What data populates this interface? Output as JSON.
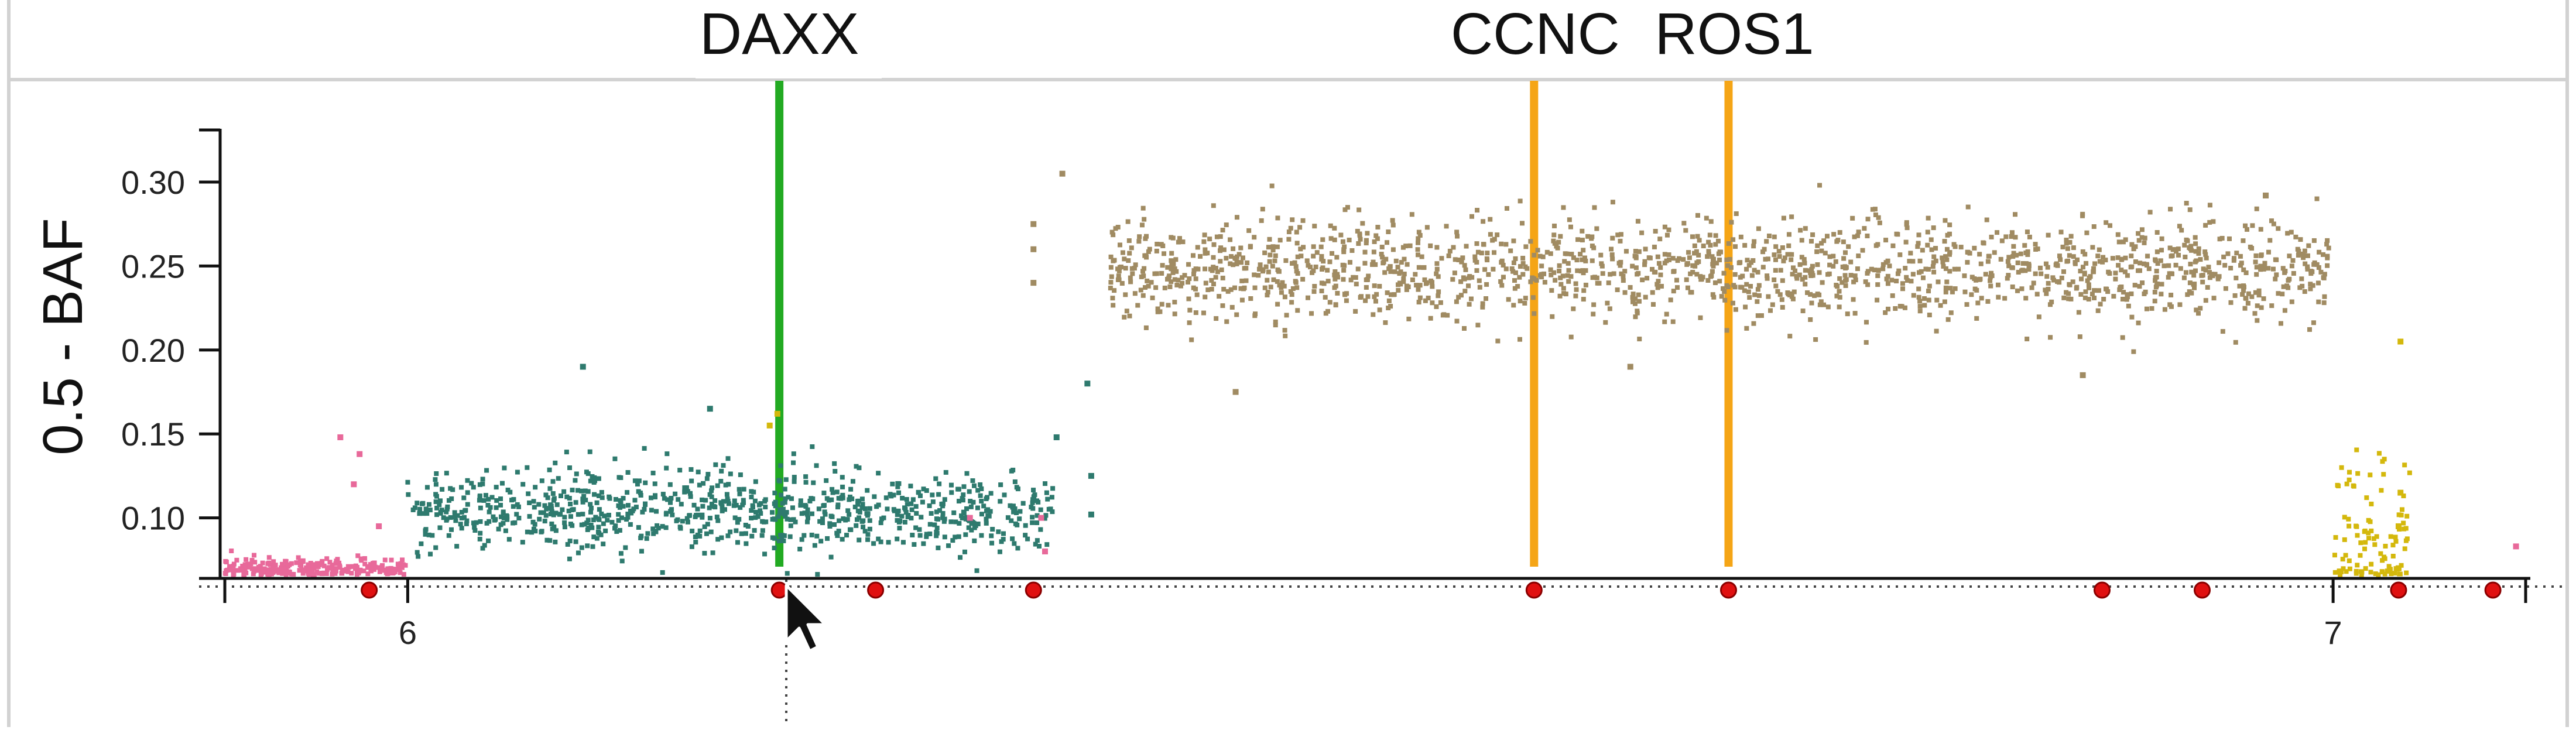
{
  "chart_data": {
    "type": "scatter",
    "ylabel": "0.5 - BAF",
    "xlabel": "",
    "ylim": [
      0.065,
      0.33
    ],
    "xlim": [
      5.905,
      7.1
    ],
    "y_ticks": [
      0.1,
      0.15,
      0.2,
      0.25,
      0.3
    ],
    "y_tick_labels": [
      "0.10",
      "0.15",
      "0.20",
      "0.25",
      "0.30"
    ],
    "x_ticks": [
      6,
      7
    ],
    "x_tick_labels": [
      "6",
      "7"
    ],
    "grid": false,
    "genes": [
      {
        "name": "DAXX",
        "position": 6.193,
        "color": "#22aa22"
      },
      {
        "name": "CCNC",
        "position": 6.585,
        "color": "#f5a516"
      },
      {
        "name": "ROS1",
        "position": 6.686,
        "color": "#f5a516"
      }
    ],
    "segments": [
      {
        "x_start": 5.905,
        "x_end": 6.0,
        "mean": 0.069,
        "sd": 0.004,
        "color": "#e8699a"
      },
      {
        "x_start": 6.0,
        "x_end": 6.335,
        "mean": 0.104,
        "sd": 0.012,
        "color": "#2e7a6e"
      },
      {
        "x_start": 6.365,
        "x_end": 6.998,
        "mean": 0.248,
        "sd": 0.015,
        "color": "#a08b62"
      },
      {
        "x_start": 7.0,
        "x_end": 7.04,
        "mean": 0.085,
        "sd": 0.025,
        "color": "#d4b80c"
      }
    ],
    "isolated_points": [
      {
        "x": 6.091,
        "y": 0.19,
        "color": "#2e7a6e"
      },
      {
        "x": 6.157,
        "y": 0.165,
        "color": "#2e7a6e"
      },
      {
        "x": 6.192,
        "y": 0.162,
        "color": "#d4b80c"
      },
      {
        "x": 6.188,
        "y": 0.155,
        "color": "#d4b80c"
      },
      {
        "x": 6.329,
        "y": 0.1,
        "color": "#e8699a"
      },
      {
        "x": 6.337,
        "y": 0.148,
        "color": "#2e7a6e"
      },
      {
        "x": 6.355,
        "y": 0.125,
        "color": "#2e7a6e"
      },
      {
        "x": 6.355,
        "y": 0.102,
        "color": "#2e7a6e"
      },
      {
        "x": 6.34,
        "y": 0.305,
        "color": "#a08b62"
      },
      {
        "x": 6.325,
        "y": 0.275,
        "color": "#a08b62"
      },
      {
        "x": 6.325,
        "y": 0.26,
        "color": "#a08b62"
      },
      {
        "x": 6.325,
        "y": 0.24,
        "color": "#a08b62"
      },
      {
        "x": 6.353,
        "y": 0.18,
        "color": "#2e7a6e"
      },
      {
        "x": 6.43,
        "y": 0.175,
        "color": "#a08b62"
      },
      {
        "x": 6.635,
        "y": 0.19,
        "color": "#a08b62"
      },
      {
        "x": 6.87,
        "y": 0.185,
        "color": "#a08b62"
      },
      {
        "x": 6.965,
        "y": 0.292,
        "color": "#a08b62"
      },
      {
        "x": 5.965,
        "y": 0.148,
        "color": "#e8699a"
      },
      {
        "x": 5.975,
        "y": 0.138,
        "color": "#e8699a"
      },
      {
        "x": 5.972,
        "y": 0.12,
        "color": "#e8699a"
      },
      {
        "x": 5.985,
        "y": 0.095,
        "color": "#e8699a"
      },
      {
        "x": 6.292,
        "y": 0.1,
        "color": "#e8699a"
      },
      {
        "x": 6.331,
        "y": 0.08,
        "color": "#e8699a"
      },
      {
        "x": 7.035,
        "y": 0.205,
        "color": "#d4b80c"
      },
      {
        "x": 7.035,
        "y": 0.115,
        "color": "#d4b80c"
      },
      {
        "x": 7.034,
        "y": 0.095,
        "color": "#d4b80c"
      },
      {
        "x": 7.034,
        "y": 0.07,
        "color": "#d4b80c"
      },
      {
        "x": 7.095,
        "y": 0.083,
        "color": "#e8699a"
      }
    ],
    "breakpoints": [
      5.98,
      6.193,
      6.243,
      6.325,
      6.585,
      6.686,
      6.88,
      6.932,
      7.034,
      7.083
    ]
  }
}
